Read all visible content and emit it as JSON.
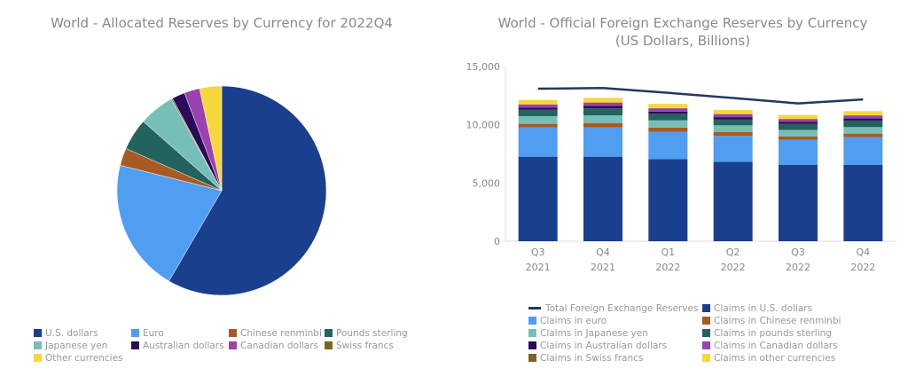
{
  "colors": {
    "usd": "#1b3f8f",
    "eur": "#4f9ef2",
    "cny": "#a85a22",
    "gbp": "#23625e",
    "jpy": "#76bfb6",
    "aud": "#2b0a57",
    "cad": "#9b42b0",
    "chf": "#7a6424",
    "other": "#f6d83c",
    "total": "#24385f"
  },
  "chart_data": [
    {
      "type": "pie",
      "title": "World - Allocated Reserves by Currency for 2022Q4",
      "labels": [
        "U.S. dollars",
        "Euro",
        "Chinese renminbi",
        "Pounds sterling",
        "Japanese yen",
        "Australian dollars",
        "Canadian dollars",
        "Swiss francs",
        "Other currencies"
      ],
      "keys": [
        "usd",
        "eur",
        "cny",
        "gbp",
        "jpy",
        "aud",
        "cad",
        "chf",
        "other"
      ],
      "values": [
        58.4,
        20.5,
        2.7,
        4.9,
        5.5,
        2.0,
        2.4,
        0.2,
        3.4
      ],
      "pie_order": [
        "usd",
        "eur",
        "cny",
        "gbp",
        "jpy",
        "chf",
        "aud",
        "cad",
        "other"
      ],
      "legend_position": "bottom"
    },
    {
      "type": "bar",
      "stacked": true,
      "title": "World - Official Foreign Exchange Reserves by Currency",
      "subtitle": "(US Dollars, Billions)",
      "categories": [
        [
          "Q3",
          "2021"
        ],
        [
          "Q4",
          "2021"
        ],
        [
          "Q1",
          "2022"
        ],
        [
          "Q2",
          "2022"
        ],
        [
          "Q3",
          "2022"
        ],
        [
          "Q4",
          "2022"
        ]
      ],
      "ylim": [
        0,
        15000
      ],
      "yticks": [
        "0",
        "5,000",
        "10,000",
        "15,000"
      ],
      "ytick_values": [
        0,
        5000,
        10000,
        15000
      ],
      "series": [
        {
          "key": "usd",
          "name": "Claims in U.S. dollars",
          "values": [
            7260,
            7260,
            7050,
            6810,
            6570,
            6570
          ]
        },
        {
          "key": "eur",
          "name": "Claims in euro",
          "values": [
            2510,
            2510,
            2350,
            2230,
            2130,
            2370
          ]
        },
        {
          "key": "cny",
          "name": "Claims in Chinese renminbi",
          "values": [
            310,
            380,
            360,
            330,
            300,
            300
          ]
        },
        {
          "key": "jpy",
          "name": "Claims in Japanese yen",
          "values": [
            660,
            660,
            620,
            580,
            560,
            560
          ]
        },
        {
          "key": "gbp",
          "name": "Claims in pounds sterling",
          "values": [
            550,
            600,
            560,
            520,
            510,
            560
          ]
        },
        {
          "key": "aud",
          "name": "Claims in Australian dollars",
          "values": [
            190,
            200,
            190,
            180,
            170,
            180
          ]
        },
        {
          "key": "cad",
          "name": "Claims in Canadian dollars",
          "values": [
            250,
            280,
            270,
            250,
            240,
            250
          ]
        },
        {
          "key": "chf",
          "name": "Claims in Swiss francs",
          "values": [
            20,
            20,
            20,
            20,
            20,
            20
          ]
        },
        {
          "key": "other",
          "name": "Claims in other currencies",
          "values": [
            380,
            400,
            370,
            360,
            340,
            360
          ]
        }
      ],
      "line": {
        "key": "total",
        "name": "Total Foreign Exchange Reserves",
        "values": [
          13100,
          13150,
          12740,
          12300,
          11830,
          12170
        ]
      },
      "legend_order": [
        "total",
        "usd",
        "eur",
        "cny",
        "jpy",
        "gbp",
        "aud",
        "cad",
        "chf",
        "other"
      ],
      "legend_position": "bottom"
    }
  ]
}
